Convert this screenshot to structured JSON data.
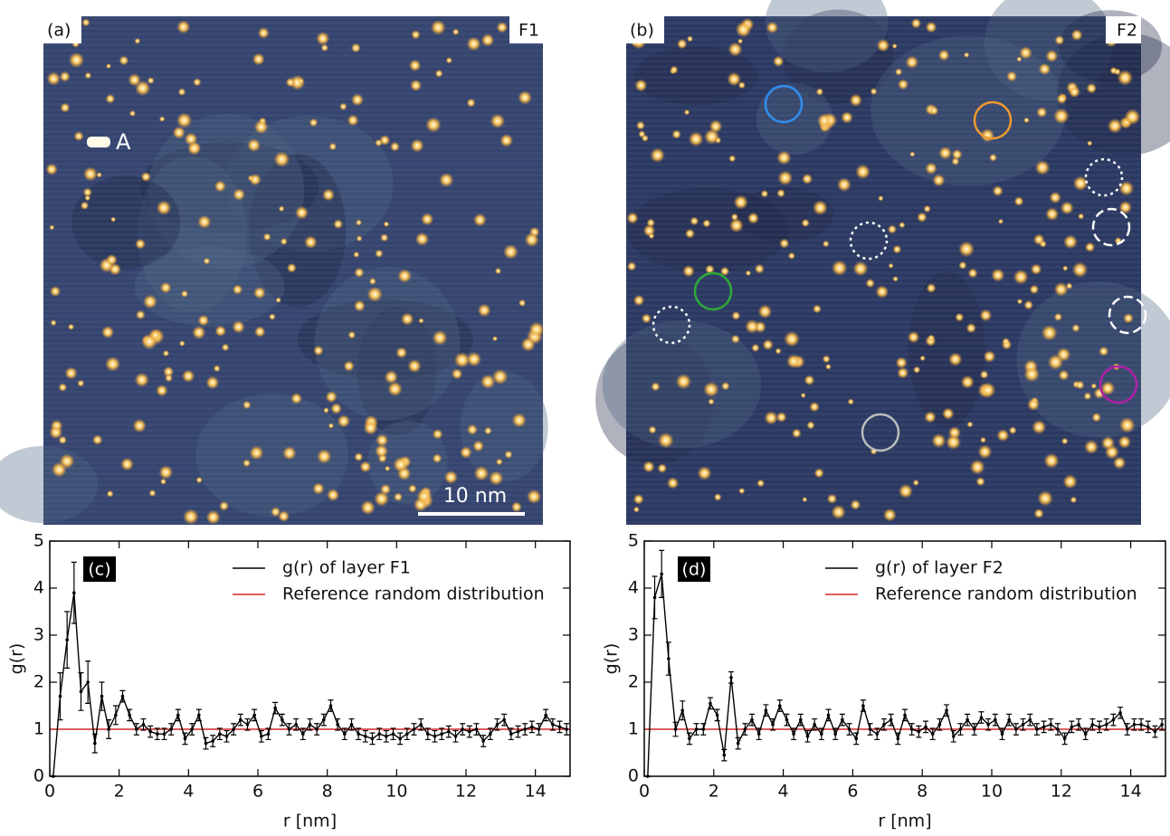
{
  "images": [
    {
      "label": "(a)",
      "layer": "F1",
      "marker": "A",
      "scale_bar": "10 nm"
    },
    {
      "label": "(b)",
      "layer": "F2"
    }
  ],
  "chart_data": [
    {
      "type": "line",
      "panel": "(c)",
      "xlabel": "r [nm]",
      "ylabel": "g(r)",
      "xlim": [
        0,
        15
      ],
      "ylim": [
        0,
        5
      ],
      "xticks": [
        0,
        2,
        4,
        6,
        8,
        10,
        12,
        14
      ],
      "yticks": [
        0,
        1,
        2,
        3,
        4,
        5
      ],
      "x": [
        0.1,
        0.3,
        0.5,
        0.7,
        0.9,
        1.1,
        1.3,
        1.5,
        1.7,
        1.9,
        2.1,
        2.3,
        2.5,
        2.7,
        2.9,
        3.1,
        3.3,
        3.5,
        3.7,
        3.9,
        4.1,
        4.3,
        4.5,
        4.7,
        4.9,
        5.1,
        5.3,
        5.5,
        5.7,
        5.9,
        6.1,
        6.3,
        6.5,
        6.7,
        6.9,
        7.1,
        7.3,
        7.5,
        7.7,
        7.9,
        8.1,
        8.3,
        8.5,
        8.7,
        8.9,
        9.1,
        9.3,
        9.5,
        9.7,
        9.9,
        10.1,
        10.3,
        10.5,
        10.7,
        10.9,
        11.1,
        11.3,
        11.5,
        11.7,
        11.9,
        12.1,
        12.3,
        12.5,
        12.7,
        12.9,
        13.1,
        13.3,
        13.5,
        13.7,
        13.9,
        14.1,
        14.3,
        14.5,
        14.7,
        14.9
      ],
      "series": [
        {
          "name": "g(r) of layer F1",
          "color": "#000000",
          "values": [
            0,
            1.7,
            2.9,
            3.9,
            1.8,
            2.0,
            0.7,
            1.7,
            1.0,
            1.3,
            1.7,
            1.3,
            1.0,
            1.1,
            0.95,
            0.9,
            0.9,
            1.0,
            1.3,
            0.8,
            1.0,
            1.3,
            0.7,
            0.75,
            0.9,
            0.85,
            1.0,
            1.2,
            1.1,
            1.3,
            0.85,
            0.9,
            1.45,
            1.2,
            1.0,
            1.1,
            0.9,
            1.1,
            1.0,
            1.2,
            1.5,
            1.1,
            0.9,
            1.1,
            0.9,
            0.85,
            0.8,
            0.9,
            0.85,
            0.9,
            0.8,
            0.9,
            1.0,
            1.1,
            0.9,
            0.85,
            0.9,
            0.95,
            0.85,
            1.0,
            0.95,
            1.0,
            0.75,
            0.9,
            1.1,
            1.2,
            0.9,
            0.95,
            1.0,
            1.05,
            1.0,
            1.3,
            1.1,
            1.05,
            1.0
          ],
          "errors": [
            0,
            0.5,
            0.6,
            0.65,
            0.4,
            0.45,
            0.2,
            0.3,
            0.2,
            0.2,
            0.12,
            0.12,
            0.12,
            0.12,
            0.12,
            0.12,
            0.12,
            0.12,
            0.12,
            0.12,
            0.12,
            0.12,
            0.12,
            0.12,
            0.12,
            0.12,
            0.12,
            0.12,
            0.12,
            0.12,
            0.12,
            0.12,
            0.12,
            0.12,
            0.12,
            0.12,
            0.12,
            0.12,
            0.12,
            0.12,
            0.12,
            0.12,
            0.12,
            0.12,
            0.12,
            0.12,
            0.12,
            0.12,
            0.12,
            0.12,
            0.12,
            0.12,
            0.12,
            0.12,
            0.12,
            0.12,
            0.12,
            0.12,
            0.12,
            0.12,
            0.12,
            0.12,
            0.12,
            0.12,
            0.12,
            0.12,
            0.12,
            0.12,
            0.12,
            0.12,
            0.12,
            0.12,
            0.12,
            0.12,
            0.12
          ]
        }
      ],
      "reference": {
        "name": "Reference random distribution",
        "color": "#d62728",
        "value": 1
      }
    },
    {
      "type": "line",
      "panel": "(d)",
      "xlabel": "r [nm]",
      "ylabel": "g(r)",
      "xlim": [
        0,
        15
      ],
      "ylim": [
        0,
        5
      ],
      "xticks": [
        0,
        2,
        4,
        6,
        8,
        10,
        12,
        14
      ],
      "yticks": [
        0,
        1,
        2,
        3,
        4,
        5
      ],
      "x": [
        0.1,
        0.3,
        0.5,
        0.7,
        0.9,
        1.1,
        1.3,
        1.5,
        1.7,
        1.9,
        2.1,
        2.3,
        2.5,
        2.7,
        2.9,
        3.1,
        3.3,
        3.5,
        3.7,
        3.9,
        4.1,
        4.3,
        4.5,
        4.7,
        4.9,
        5.1,
        5.3,
        5.5,
        5.7,
        5.9,
        6.1,
        6.3,
        6.5,
        6.7,
        6.9,
        7.1,
        7.3,
        7.5,
        7.7,
        7.9,
        8.1,
        8.3,
        8.5,
        8.7,
        8.9,
        9.1,
        9.3,
        9.5,
        9.7,
        9.9,
        10.1,
        10.3,
        10.5,
        10.7,
        10.9,
        11.1,
        11.3,
        11.5,
        11.7,
        11.9,
        12.1,
        12.3,
        12.5,
        12.7,
        12.9,
        13.1,
        13.3,
        13.5,
        13.7,
        13.9,
        14.1,
        14.3,
        14.5,
        14.7,
        14.9
      ],
      "series": [
        {
          "name": "g(r) of layer F2",
          "color": "#000000",
          "values": [
            0,
            3.8,
            4.3,
            2.5,
            1.0,
            1.4,
            0.8,
            1.0,
            1.0,
            1.55,
            1.3,
            0.45,
            2.1,
            0.7,
            1.0,
            1.2,
            0.9,
            1.4,
            1.1,
            1.5,
            1.2,
            0.9,
            1.2,
            0.85,
            1.1,
            0.9,
            1.3,
            0.9,
            1.2,
            1.0,
            0.8,
            1.5,
            1.0,
            0.9,
            1.1,
            1.2,
            0.8,
            1.3,
            1.0,
            0.95,
            1.05,
            0.9,
            1.1,
            1.4,
            0.85,
            1.0,
            1.2,
            1.0,
            1.25,
            1.1,
            1.2,
            0.9,
            1.2,
            1.0,
            1.1,
            1.2,
            1.0,
            1.05,
            1.1,
            1.0,
            0.8,
            1.05,
            1.1,
            0.9,
            1.1,
            1.05,
            1.1,
            1.2,
            1.35,
            1.0,
            1.1,
            1.1,
            1.05,
            0.95,
            1.1
          ],
          "errors": [
            0,
            0.45,
            0.5,
            0.35,
            0.15,
            0.2,
            0.12,
            0.12,
            0.12,
            0.12,
            0.12,
            0.12,
            0.12,
            0.12,
            0.12,
            0.12,
            0.12,
            0.12,
            0.12,
            0.12,
            0.12,
            0.12,
            0.12,
            0.12,
            0.12,
            0.12,
            0.12,
            0.12,
            0.12,
            0.12,
            0.12,
            0.12,
            0.12,
            0.12,
            0.12,
            0.12,
            0.12,
            0.12,
            0.12,
            0.12,
            0.12,
            0.12,
            0.12,
            0.12,
            0.12,
            0.12,
            0.12,
            0.12,
            0.12,
            0.12,
            0.12,
            0.12,
            0.12,
            0.12,
            0.12,
            0.12,
            0.12,
            0.12,
            0.12,
            0.12,
            0.12,
            0.12,
            0.12,
            0.12,
            0.12,
            0.12,
            0.12,
            0.12,
            0.12,
            0.12,
            0.12,
            0.12,
            0.12,
            0.12,
            0.12
          ]
        }
      ],
      "reference": {
        "name": "Reference random distribution",
        "color": "#d62728",
        "value": 1
      }
    }
  ]
}
